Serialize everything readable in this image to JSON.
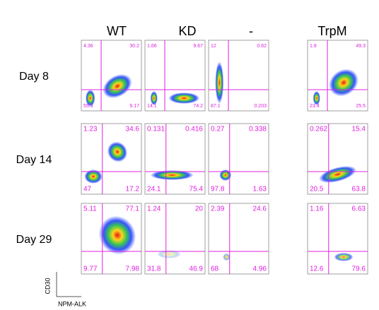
{
  "columns": [
    "WT",
    "KD",
    "-",
    "TrpM"
  ],
  "rows": [
    {
      "label": "Day 8",
      "panels": [
        [
          "4.36",
          "30.2",
          "55.3",
          "9.17"
        ],
        [
          "1.66",
          "9.67",
          "14.1",
          "74.2"
        ],
        [
          "12",
          "0.62",
          "87.1",
          "0.203"
        ],
        [
          "1.8",
          "49.3",
          "23.4",
          "25.5"
        ]
      ]
    },
    {
      "label": "Day 14",
      "panels": [
        [
          "1.23",
          "34.6",
          "47",
          "17.2"
        ],
        [
          "0.131",
          "0.416",
          "24.1",
          "75.4"
        ],
        [
          "0.27",
          "0.338",
          "97.8",
          "1.63"
        ],
        [
          "0.262",
          "15.4",
          "20.5",
          "63.8"
        ]
      ]
    },
    {
      "label": "Day 29",
      "panels": [
        [
          "5.11",
          "77.1",
          "9.77",
          "7.98"
        ],
        [
          "1.24",
          "20",
          "31.8",
          "46.9"
        ],
        [
          "2.39",
          "24.6",
          "68",
          "4.96"
        ],
        [
          "1.16",
          "6.63",
          "12.6",
          "79.6"
        ]
      ]
    }
  ],
  "axes": {
    "y": "CD30",
    "x": "NPM-ALK"
  }
}
